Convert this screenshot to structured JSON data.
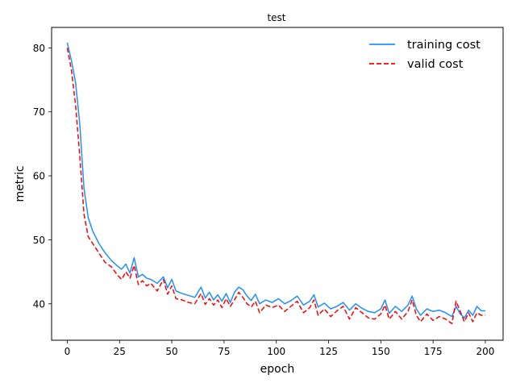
{
  "chart_data": {
    "type": "line",
    "title": "test",
    "xlabel": "epoch",
    "ylabel": "metric",
    "xlim": [
      -7.5,
      208.5
    ],
    "ylim": [
      34.3,
      83.2
    ],
    "xticks": [
      0,
      25,
      50,
      75,
      100,
      125,
      150,
      175,
      200
    ],
    "yticks": [
      40,
      50,
      60,
      70,
      80
    ],
    "grid": false,
    "legend_position": "top-right",
    "series": [
      {
        "name": "training cost",
        "color": "#1e90ff",
        "dash": "solid",
        "points": [
          [
            0,
            80.8
          ],
          [
            2,
            78.0
          ],
          [
            4,
            74.5
          ],
          [
            6,
            68.0
          ],
          [
            8,
            58.0
          ],
          [
            10,
            53.5
          ],
          [
            12,
            51.5
          ],
          [
            15,
            49.5
          ],
          [
            18,
            48.0
          ],
          [
            21,
            46.8
          ],
          [
            24,
            45.9
          ],
          [
            26,
            45.4
          ],
          [
            28,
            46.2
          ],
          [
            30,
            44.8
          ],
          [
            32,
            47.2
          ],
          [
            34,
            44.2
          ],
          [
            36,
            44.6
          ],
          [
            38,
            44.0
          ],
          [
            40,
            43.8
          ],
          [
            43,
            43.2
          ],
          [
            46,
            44.2
          ],
          [
            48,
            42.5
          ],
          [
            50,
            43.8
          ],
          [
            52,
            42.0
          ],
          [
            55,
            41.6
          ],
          [
            58,
            41.3
          ],
          [
            61,
            41.0
          ],
          [
            64,
            42.6
          ],
          [
            66,
            40.9
          ],
          [
            68,
            41.8
          ],
          [
            70,
            40.6
          ],
          [
            72,
            41.4
          ],
          [
            74,
            40.4
          ],
          [
            76,
            41.6
          ],
          [
            78,
            40.2
          ],
          [
            80,
            41.8
          ],
          [
            82,
            42.6
          ],
          [
            84,
            42.2
          ],
          [
            86,
            41.2
          ],
          [
            88,
            40.5
          ],
          [
            90,
            41.5
          ],
          [
            92,
            40.0
          ],
          [
            95,
            40.6
          ],
          [
            98,
            40.2
          ],
          [
            101,
            40.8
          ],
          [
            104,
            40.0
          ],
          [
            107,
            40.5
          ],
          [
            110,
            41.2
          ],
          [
            113,
            39.8
          ],
          [
            116,
            40.4
          ],
          [
            118,
            41.4
          ],
          [
            120,
            39.5
          ],
          [
            123,
            40.1
          ],
          [
            126,
            39.2
          ],
          [
            129,
            39.6
          ],
          [
            132,
            40.2
          ],
          [
            135,
            39.0
          ],
          [
            138,
            40.0
          ],
          [
            141,
            39.3
          ],
          [
            144,
            38.8
          ],
          [
            147,
            38.6
          ],
          [
            150,
            39.2
          ],
          [
            152,
            40.6
          ],
          [
            154,
            38.5
          ],
          [
            157,
            39.6
          ],
          [
            160,
            38.8
          ],
          [
            163,
            39.8
          ],
          [
            165,
            41.2
          ],
          [
            167,
            39.2
          ],
          [
            169,
            38.2
          ],
          [
            172,
            39.2
          ],
          [
            175,
            38.8
          ],
          [
            178,
            39.0
          ],
          [
            181,
            38.6
          ],
          [
            184,
            38.0
          ],
          [
            186,
            39.6
          ],
          [
            188,
            38.4
          ],
          [
            190,
            37.8
          ],
          [
            192,
            39.0
          ],
          [
            194,
            38.2
          ],
          [
            196,
            39.6
          ],
          [
            198,
            38.9
          ],
          [
            200,
            38.9
          ]
        ]
      },
      {
        "name": "valid cost",
        "color": "#ff0000",
        "dash": "dashed",
        "points": [
          [
            0,
            80.0
          ],
          [
            2,
            76.5
          ],
          [
            4,
            71.0
          ],
          [
            6,
            63.0
          ],
          [
            8,
            54.0
          ],
          [
            10,
            50.5
          ],
          [
            12,
            49.5
          ],
          [
            15,
            48.0
          ],
          [
            18,
            46.5
          ],
          [
            21,
            45.8
          ],
          [
            24,
            44.5
          ],
          [
            26,
            43.8
          ],
          [
            28,
            45.0
          ],
          [
            30,
            44.0
          ],
          [
            32,
            46.0
          ],
          [
            34,
            43.0
          ],
          [
            36,
            43.6
          ],
          [
            38,
            42.8
          ],
          [
            40,
            43.2
          ],
          [
            43,
            42.0
          ],
          [
            46,
            43.8
          ],
          [
            48,
            41.5
          ],
          [
            50,
            42.8
          ],
          [
            52,
            40.8
          ],
          [
            55,
            40.6
          ],
          [
            58,
            40.2
          ],
          [
            61,
            40.0
          ],
          [
            64,
            41.6
          ],
          [
            66,
            39.9
          ],
          [
            68,
            40.8
          ],
          [
            70,
            39.8
          ],
          [
            72,
            40.6
          ],
          [
            74,
            39.4
          ],
          [
            76,
            40.8
          ],
          [
            78,
            39.6
          ],
          [
            80,
            40.6
          ],
          [
            82,
            41.8
          ],
          [
            84,
            41.0
          ],
          [
            86,
            40.0
          ],
          [
            88,
            39.5
          ],
          [
            90,
            40.4
          ],
          [
            92,
            38.6
          ],
          [
            95,
            39.8
          ],
          [
            98,
            39.4
          ],
          [
            101,
            39.8
          ],
          [
            104,
            38.8
          ],
          [
            107,
            39.6
          ],
          [
            110,
            40.4
          ],
          [
            113,
            38.6
          ],
          [
            116,
            39.4
          ],
          [
            118,
            40.6
          ],
          [
            120,
            38.2
          ],
          [
            123,
            39.2
          ],
          [
            126,
            38.0
          ],
          [
            129,
            38.9
          ],
          [
            132,
            39.6
          ],
          [
            135,
            37.6
          ],
          [
            138,
            39.4
          ],
          [
            141,
            38.6
          ],
          [
            144,
            37.8
          ],
          [
            147,
            37.6
          ],
          [
            150,
            38.4
          ],
          [
            152,
            39.8
          ],
          [
            154,
            37.6
          ],
          [
            157,
            38.8
          ],
          [
            160,
            37.6
          ],
          [
            163,
            38.8
          ],
          [
            165,
            40.6
          ],
          [
            167,
            38.2
          ],
          [
            169,
            37.2
          ],
          [
            172,
            38.4
          ],
          [
            175,
            37.4
          ],
          [
            178,
            38.0
          ],
          [
            181,
            37.6
          ],
          [
            184,
            36.9
          ],
          [
            186,
            40.4
          ],
          [
            188,
            38.8
          ],
          [
            190,
            37.2
          ],
          [
            192,
            38.6
          ],
          [
            194,
            37.2
          ],
          [
            196,
            38.6
          ],
          [
            198,
            38.2
          ],
          [
            200,
            38.2
          ]
        ]
      }
    ]
  }
}
